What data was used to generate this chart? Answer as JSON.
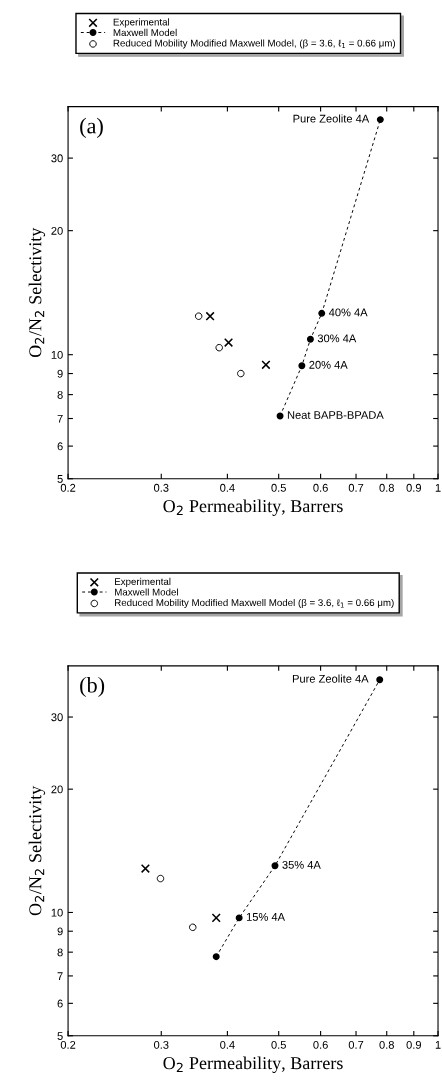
{
  "chart_data": [
    {
      "type": "scatter",
      "xlabel": "O$_{2}$ Permeability, Barrers",
      "ylabel": "O$_{2}$/N$_{2}$ Selectivity",
      "log": "xy",
      "xlim": [
        0.2,
        1
      ],
      "ylim": [
        5,
        40
      ],
      "xticks": [
        0.2,
        0.3,
        0.4,
        0.5,
        0.6,
        0.7,
        0.8,
        0.9,
        1
      ],
      "yticks": [
        5,
        6,
        7,
        8,
        9,
        10,
        20,
        30
      ],
      "legend": "top",
      "grid": false,
      "series": [
        {
          "name": "Experimental",
          "marker": "cross",
          "color": "#000000",
          "x": [
            0.371,
            0.402,
            0.473
          ],
          "values": [
            12.4,
            10.7,
            9.45
          ]
        },
        {
          "name": "Maxwell Model",
          "type": "line",
          "marker": "circle",
          "line_style": "dashed",
          "color": "#000000",
          "x": [
            0.503,
            0.553,
            0.574,
            0.603,
            0.778
          ],
          "values": [
            7.1,
            9.4,
            10.9,
            12.6,
            37.2
          ]
        },
        {
          "name": "Reduced Mobility Modified Maxwell Model, (β = 3.6, ℓ$_{1}$ = 0.66 μm)",
          "marker": "circle",
          "color": "#000000",
          "x": [
            0.353,
            0.386,
            0.424
          ],
          "values": [
            12.4,
            10.4,
            9.0
          ]
        }
      ],
      "annotations": [
        "(a)",
        {
          "text": "Pure Zeolite 4A",
          "x": 0.778,
          "y": 37.2
        },
        {
          "text": "40% 4A",
          "x": 0.603,
          "y": 12.6
        },
        {
          "text": "30% 4A",
          "x": 0.574,
          "y": 10.9
        },
        {
          "text": "20% 4A",
          "x": 0.553,
          "y": 9.4
        },
        {
          "text": "Neat BAPB-BPADA",
          "x": 0.503,
          "y": 7.1
        }
      ]
    },
    {
      "type": "scatter",
      "xlabel": "O$_{2}$ Permeability, Barrers",
      "ylabel": "O$_{2}$/N$_{2}$ Selectivity",
      "log": "xy",
      "xlim": [
        0.2,
        1
      ],
      "ylim": [
        5,
        40
      ],
      "xticks": [
        0.2,
        0.3,
        0.4,
        0.5,
        0.6,
        0.7,
        0.8,
        0.9,
        1
      ],
      "yticks": [
        5,
        6,
        7,
        8,
        9,
        10,
        20,
        30
      ],
      "legend": "top",
      "grid": false,
      "series": [
        {
          "name": "Experimental",
          "marker": "cross",
          "color": "#000000",
          "x": [
            0.28,
            0.381
          ],
          "values": [
            12.8,
            9.7
          ]
        },
        {
          "name": "Maxwell Model",
          "type": "line",
          "marker": "circle",
          "line_style": "dashed",
          "color": "#000000",
          "x": [
            0.381,
            0.421,
            0.492,
            0.776
          ],
          "values": [
            7.8,
            9.7,
            13.0,
            37.0
          ]
        },
        {
          "name": "Reduced Mobility Modified Maxwell Model (β = 3.6, ℓ$_{1}$ = 0.66 μm)",
          "marker": "circle",
          "color": "#000000",
          "x": [
            0.299,
            0.344
          ],
          "values": [
            12.1,
            9.2
          ]
        }
      ],
      "annotations": [
        "(b)",
        {
          "text": "Pure Zeolite 4A",
          "x": 0.776,
          "y": 37.0
        },
        {
          "text": "35% 4A",
          "x": 0.492,
          "y": 13.0
        },
        {
          "text": "15% 4A",
          "x": 0.421,
          "y": 9.7
        }
      ]
    }
  ]
}
